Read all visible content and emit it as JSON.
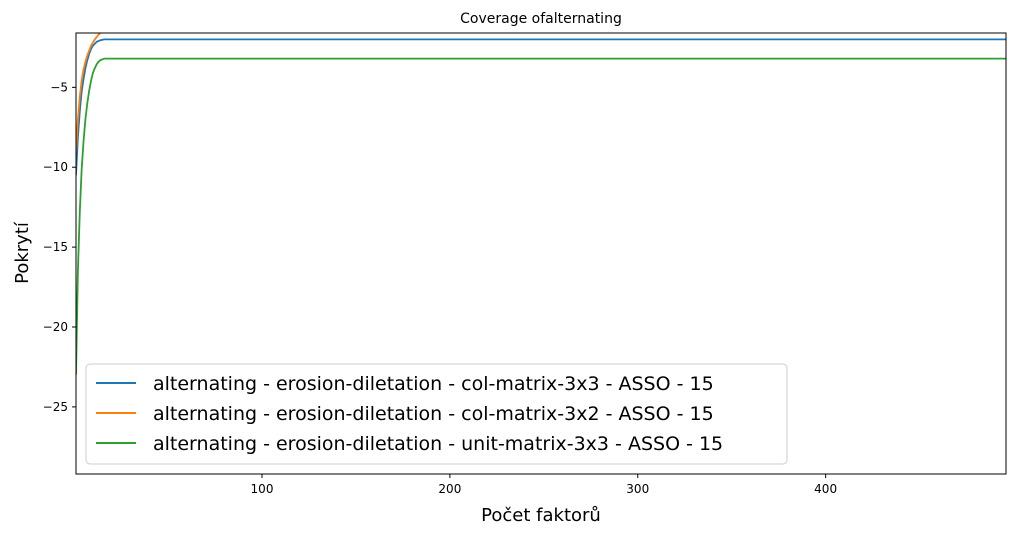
{
  "chart_data": {
    "type": "line",
    "title": "Coverage ofalternating",
    "xlabel": "Počet faktorů",
    "ylabel": "Pokrytí",
    "xlim": [
      1,
      496
    ],
    "ylim": [
      -29.2,
      -1.6
    ],
    "xticks": [
      100,
      200,
      300,
      400
    ],
    "yticks": [
      -25,
      -20,
      -15,
      -10,
      -5
    ],
    "grid": false,
    "legend_position": "lower-left",
    "series": [
      {
        "name": "alternating - erosion-diletation - col-matrix-3x3 - ASSO - 15",
        "color": "#1f77b4",
        "x": [
          1,
          2,
          3,
          4,
          5,
          6,
          7,
          8,
          9,
          10,
          12,
          14,
          16,
          496
        ],
        "y": [
          -10.5,
          -8.1,
          -6.5,
          -5.3,
          -4.5,
          -3.8,
          -3.3,
          -2.9,
          -2.6,
          -2.4,
          -2.15,
          -2.05,
          -2.0,
          -2.0
        ]
      },
      {
        "name": "alternating - erosion-diletation - col-matrix-3x2 - ASSO - 15",
        "color": "#ff7f0e",
        "x": [
          1,
          2,
          3,
          4,
          5,
          6,
          7,
          8,
          9,
          10,
          11,
          12,
          13,
          14
        ],
        "y": [
          -9.0,
          -7.0,
          -5.6,
          -4.6,
          -3.9,
          -3.4,
          -3.0,
          -2.7,
          -2.4,
          -2.2,
          -2.0,
          -1.85,
          -1.7,
          -1.6
        ]
      },
      {
        "name": "alternating - erosion-diletation - unit-matrix-3x3 - ASSO - 15",
        "color": "#2ca02c",
        "x": [
          1,
          2,
          3,
          4,
          5,
          6,
          7,
          8,
          9,
          10,
          11,
          12,
          13,
          14,
          16,
          496
        ],
        "y": [
          -23.0,
          -16.5,
          -12.8,
          -10.2,
          -8.4,
          -7.0,
          -6.0,
          -5.2,
          -4.6,
          -4.1,
          -3.8,
          -3.55,
          -3.4,
          -3.3,
          -3.2,
          -3.2
        ]
      }
    ]
  }
}
